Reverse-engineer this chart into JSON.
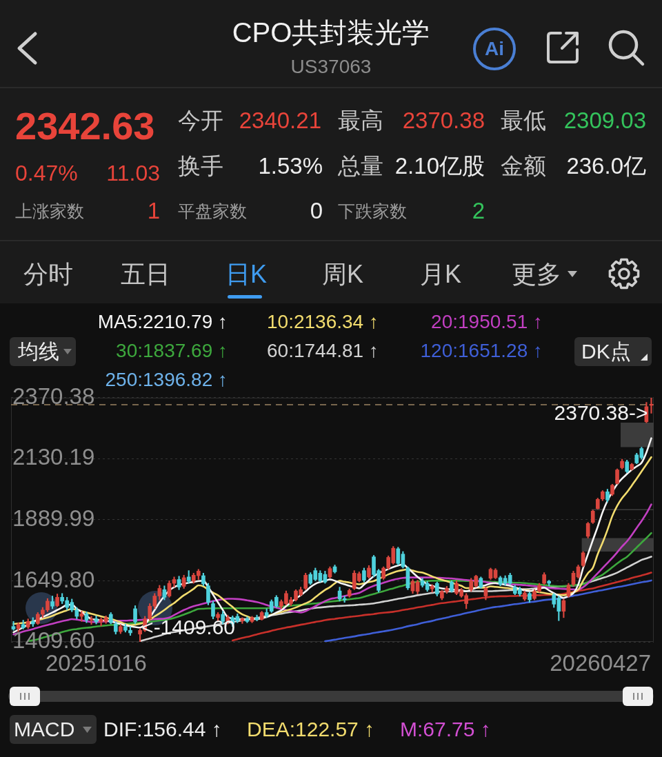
{
  "chart_data": {
    "type": "candlestick",
    "title": "CPO共封装光学",
    "subtitle": "US37063",
    "categories": [
      null,
      null,
      null,
      null,
      null,
      null,
      null,
      null,
      null,
      null,
      null,
      null,
      null,
      null,
      null,
      null,
      null,
      null,
      null,
      null,
      null,
      null,
      null,
      null,
      null,
      null,
      null,
      null,
      null,
      null,
      null,
      null,
      null,
      null,
      null,
      null,
      null,
      null,
      null,
      null,
      null,
      null,
      null,
      null,
      null,
      null,
      null,
      null,
      null,
      null,
      null,
      null,
      null,
      null,
      null,
      null,
      null,
      null,
      null,
      null,
      null,
      null,
      null,
      null,
      null,
      null,
      null,
      null,
      null,
      null,
      null,
      null,
      null,
      null,
      null,
      null,
      null,
      null,
      null,
      null,
      null,
      null,
      null,
      null,
      null,
      null,
      null,
      null,
      null,
      null,
      null,
      null,
      null,
      null,
      null,
      null,
      null,
      null,
      null,
      null,
      null,
      null,
      null,
      null,
      null,
      null,
      null,
      null,
      null,
      null,
      null,
      null,
      null,
      null,
      null,
      null,
      null,
      null,
      null,
      null,
      null,
      null,
      null,
      null,
      null,
      null,
      null,
      null,
      null,
      null,
      null,
      null
    ],
    "ohlc": [
      [
        1470,
        1490,
        1455,
        1460
      ],
      [
        1462,
        1485,
        1450,
        1478
      ],
      [
        1478,
        1495,
        1460,
        1465
      ],
      [
        1468,
        1500,
        1462,
        1490
      ],
      [
        1490,
        1505,
        1470,
        1480
      ],
      [
        1482,
        1525,
        1478,
        1518
      ],
      [
        1518,
        1545,
        1505,
        1535
      ],
      [
        1535,
        1580,
        1528,
        1570
      ],
      [
        1568,
        1590,
        1540,
        1550
      ],
      [
        1552,
        1598,
        1548,
        1585
      ],
      [
        1585,
        1600,
        1560,
        1570
      ],
      [
        1572,
        1585,
        1535,
        1545
      ],
      [
        1565,
        1578,
        1528,
        1535
      ],
      [
        1535,
        1545,
        1500,
        1510
      ],
      [
        1510,
        1530,
        1490,
        1520
      ],
      [
        1520,
        1528,
        1485,
        1495
      ],
      [
        1495,
        1510,
        1478,
        1500
      ],
      [
        1500,
        1512,
        1480,
        1488
      ],
      [
        1488,
        1505,
        1472,
        1498
      ],
      [
        1490,
        1512,
        1482,
        1505
      ],
      [
        1518,
        1525,
        1480,
        1485
      ],
      [
        1480,
        1488,
        1440,
        1450
      ],
      [
        1450,
        1478,
        1442,
        1470
      ],
      [
        1470,
        1480,
        1448,
        1455
      ],
      [
        1455,
        1470,
        1435,
        1445
      ],
      [
        1540,
        1552,
        1480,
        1488
      ],
      [
        1440,
        1462,
        1409.6,
        1455
      ],
      [
        1455,
        1510,
        1450,
        1500
      ],
      [
        1500,
        1560,
        1495,
        1550
      ],
      [
        1550,
        1600,
        1540,
        1590
      ],
      [
        1590,
        1632,
        1575,
        1620
      ],
      [
        1615,
        1630,
        1575,
        1585
      ],
      [
        1590,
        1650,
        1585,
        1640
      ],
      [
        1640,
        1665,
        1625,
        1655
      ],
      [
        1655,
        1668,
        1615,
        1625
      ],
      [
        1628,
        1672,
        1620,
        1662
      ],
      [
        1665,
        1690,
        1640,
        1648
      ],
      [
        1648,
        1680,
        1640,
        1672
      ],
      [
        1670,
        1695,
        1655,
        1688
      ],
      [
        1670,
        1680,
        1630,
        1638
      ],
      [
        1630,
        1640,
        1555,
        1565
      ],
      [
        1560,
        1570,
        1500,
        1510
      ],
      [
        1505,
        1525,
        1490,
        1518
      ],
      [
        1518,
        1530,
        1480,
        1490
      ],
      [
        1490,
        1515,
        1480,
        1505
      ],
      [
        1505,
        1512,
        1470,
        1480
      ],
      [
        1510,
        1520,
        1485,
        1492
      ],
      [
        1492,
        1505,
        1482,
        1500
      ],
      [
        1500,
        1508,
        1485,
        1490
      ],
      [
        1490,
        1510,
        1485,
        1505
      ],
      [
        1505,
        1515,
        1492,
        1498
      ],
      [
        1498,
        1530,
        1495,
        1525
      ],
      [
        1525,
        1540,
        1505,
        1512
      ],
      [
        1568,
        1575,
        1525,
        1530
      ],
      [
        1585,
        1592,
        1545,
        1550
      ],
      [
        1550,
        1575,
        1540,
        1568
      ],
      [
        1560,
        1610,
        1555,
        1600
      ],
      [
        1560,
        1585,
        1552,
        1575
      ],
      [
        1575,
        1615,
        1570,
        1610
      ],
      [
        1595,
        1625,
        1590,
        1615
      ],
      [
        1620,
        1680,
        1615,
        1672
      ],
      [
        1675,
        1682,
        1635,
        1640
      ],
      [
        1690,
        1700,
        1650,
        1655
      ],
      [
        1680,
        1690,
        1645,
        1650
      ],
      [
        1675,
        1688,
        1640,
        1645
      ],
      [
        1665,
        1705,
        1660,
        1698
      ],
      [
        1705,
        1712,
        1680,
        1685
      ],
      [
        1610,
        1625,
        1570,
        1578
      ],
      [
        1580,
        1590,
        1565,
        1575
      ],
      [
        1590,
        1618,
        1585,
        1612
      ],
      [
        1620,
        1690,
        1615,
        1680
      ],
      [
        1650,
        1685,
        1645,
        1678
      ],
      [
        1690,
        1700,
        1645,
        1652
      ],
      [
        1665,
        1710,
        1660,
        1700
      ],
      [
        1744,
        1750,
        1665,
        1674
      ],
      [
        1690,
        1695,
        1605,
        1612
      ],
      [
        1660,
        1705,
        1655,
        1700
      ],
      [
        1700,
        1748,
        1695,
        1742
      ],
      [
        1720,
        1785,
        1715,
        1778
      ],
      [
        1776,
        1782,
        1712,
        1718
      ],
      [
        1755,
        1765,
        1700,
        1705
      ],
      [
        1700,
        1705,
        1615,
        1622
      ],
      [
        1610,
        1655,
        1600,
        1648
      ],
      [
        1608,
        1652,
        1598,
        1645
      ],
      [
        1650,
        1660,
        1625,
        1632
      ],
      [
        1640,
        1648,
        1608,
        1615
      ],
      [
        1618,
        1635,
        1605,
        1628
      ],
      [
        1640,
        1645,
        1590,
        1598
      ],
      [
        1582,
        1612,
        1575,
        1608
      ],
      [
        1608,
        1628,
        1600,
        1620
      ],
      [
        1645,
        1650,
        1605,
        1610
      ],
      [
        1600,
        1650,
        1595,
        1640
      ],
      [
        1590,
        1620,
        1585,
        1612
      ],
      [
        1560,
        1600,
        1540,
        1592
      ],
      [
        1615,
        1660,
        1608,
        1650
      ],
      [
        1630,
        1672,
        1625,
        1668
      ],
      [
        1660,
        1665,
        1620,
        1625
      ],
      [
        1590,
        1625,
        1575,
        1620
      ],
      [
        1660,
        1700,
        1655,
        1695
      ],
      [
        1662,
        1698,
        1658,
        1692
      ],
      [
        1662,
        1668,
        1630,
        1636
      ],
      [
        1660,
        1670,
        1632,
        1640
      ],
      [
        1672,
        1680,
        1635,
        1640
      ],
      [
        1625,
        1632,
        1595,
        1600
      ],
      [
        1615,
        1625,
        1590,
        1598
      ],
      [
        1578,
        1610,
        1572,
        1602
      ],
      [
        1600,
        1605,
        1565,
        1575
      ],
      [
        1580,
        1615,
        1575,
        1608
      ],
      [
        1610,
        1640,
        1605,
        1632
      ],
      [
        1640,
        1682,
        1635,
        1674
      ],
      [
        1648,
        1652,
        1630,
        1640
      ],
      [
        1595,
        1600,
        1545,
        1558
      ],
      [
        1582,
        1590,
        1493,
        1530
      ],
      [
        1530,
        1578,
        1505,
        1572
      ],
      [
        1590,
        1640,
        1585,
        1632
      ],
      [
        1636,
        1688,
        1630,
        1680
      ],
      [
        1665,
        1712,
        1660,
        1705
      ],
      [
        1710,
        1765,
        1705,
        1760
      ],
      [
        1825,
        1880,
        1818,
        1875
      ],
      [
        1880,
        1928,
        1875,
        1924
      ],
      [
        1934,
        1975,
        1932,
        1970
      ],
      [
        1972,
        2005,
        1965,
        2000
      ],
      [
        2000,
        2010,
        1960,
        1968
      ],
      [
        1990,
        2030,
        1985,
        2026
      ],
      [
        2033,
        2090,
        2030,
        2086
      ],
      [
        2095,
        2128,
        2090,
        2120
      ],
      [
        2118,
        2125,
        2075,
        2080
      ],
      [
        2090,
        2112,
        2085,
        2108
      ],
      [
        2145,
        2152,
        2110,
        2114
      ],
      [
        2170,
        2176,
        2128,
        2135
      ],
      [
        2276,
        2352,
        2272,
        2335
      ],
      [
        2340.21,
        2370.38,
        2309.03,
        2342.63
      ]
    ],
    "colors": [
      "#4fd1dc",
      "#d9463e",
      "#4fd1dc",
      "#d9463e",
      "#4fd1dc",
      "#d9463e",
      "#d9463e",
      "#d9463e",
      "#4fd1dc",
      "#d9463e",
      "#4fd1dc",
      "#4fd1dc",
      "#4fd1dc",
      "#4fd1dc",
      "#d9463e",
      "#4fd1dc",
      "#d9463e",
      "#4fd1dc",
      "#d9463e",
      "#d9463e",
      "#4fd1dc",
      "#4fd1dc",
      "#d9463e",
      "#4fd1dc",
      "#4fd1dc",
      "#4fd1dc",
      "#d9463e",
      "#d9463e",
      "#d9463e",
      "#d9463e",
      "#d9463e",
      "#4fd1dc",
      "#d9463e",
      "#d9463e",
      "#4fd1dc",
      "#d9463e",
      "#4fd1dc",
      "#d9463e",
      "#d9463e",
      "#4fd1dc",
      "#4fd1dc",
      "#4fd1dc",
      "#d9463e",
      "#4fd1dc",
      "#d9463e",
      "#4fd1dc",
      "#4fd1dc",
      "#d9463e",
      "#4fd1dc",
      "#d9463e",
      "#4fd1dc",
      "#d9463e",
      "#4fd1dc",
      "#4fd1dc",
      "#4fd1dc",
      "#d9463e",
      "#d9463e",
      "#d9463e",
      "#d9463e",
      "#d9463e",
      "#d9463e",
      "#4fd1dc",
      "#4fd1dc",
      "#4fd1dc",
      "#4fd1dc",
      "#d9463e",
      "#4fd1dc",
      "#4fd1dc",
      "#4fd1dc",
      "#d9463e",
      "#d9463e",
      "#d9463e",
      "#4fd1dc",
      "#d9463e",
      "#4fd1dc",
      "#4fd1dc",
      "#d9463e",
      "#d9463e",
      "#d9463e",
      "#4fd1dc",
      "#4fd1dc",
      "#4fd1dc",
      "#d9463e",
      "#d9463e",
      "#4fd1dc",
      "#4fd1dc",
      "#d9463e",
      "#4fd1dc",
      "#d9463e",
      "#d9463e",
      "#4fd1dc",
      "#d9463e",
      "#d9463e",
      "#d9463e",
      "#d9463e",
      "#d9463e",
      "#4fd1dc",
      "#d9463e",
      "#d9463e",
      "#d9463e",
      "#4fd1dc",
      "#4fd1dc",
      "#4fd1dc",
      "#4fd1dc",
      "#4fd1dc",
      "#d9463e",
      "#4fd1dc",
      "#d9463e",
      "#d9463e",
      "#d9463e",
      "#4fd1dc",
      "#4fd1dc",
      "#4fd1dc",
      "#d9463e",
      "#d9463e",
      "#d9463e",
      "#d9463e",
      "#d9463e",
      "#d9463e",
      "#d9463e",
      "#d9463e",
      "#d9463e",
      "#4fd1dc",
      "#d9463e",
      "#d9463e",
      "#d9463e",
      "#4fd1dc",
      "#d9463e",
      "#4fd1dc",
      "#4fd1dc",
      "#d9463e",
      "#d9463e"
    ],
    "series": [
      {
        "name": "MA5:2210.79 ↑",
        "type": "line",
        "color": "#f5f5f5",
        "values": [
          1447,
          1457,
          1467,
          1478,
          1488,
          1497,
          1507,
          1516,
          1525,
          1535,
          1545,
          1555,
          1556,
          1540,
          1528,
          1512,
          1499,
          1497,
          1495,
          1493,
          1490,
          1485,
          1480,
          1474,
          1471,
          1468,
          1466,
          1478,
          1505,
          1535,
          1565,
          1590,
          1612,
          1625,
          1633,
          1638,
          1642,
          1646,
          1649,
          1650,
          1625,
          1595,
          1565,
          1535,
          1507,
          1502,
          1499,
          1499,
          1499,
          1499,
          1499,
          1503,
          1507,
          1515,
          1525,
          1534,
          1550,
          1565,
          1580,
          1593,
          1608,
          1625,
          1638,
          1645,
          1650,
          1655,
          1650,
          1642,
          1636,
          1630,
          1625,
          1620,
          1635,
          1652,
          1668,
          1680,
          1688,
          1696,
          1704,
          1710,
          1714,
          1700,
          1682,
          1665,
          1650,
          1636,
          1630,
          1624,
          1620,
          1618,
          1616,
          1614,
          1612,
          1609,
          1615,
          1622,
          1628,
          1633,
          1639,
          1641,
          1638,
          1634,
          1630,
          1624,
          1618,
          1612,
          1609,
          1614,
          1619,
          1623,
          1612,
          1601,
          1591,
          1582,
          1590,
          1601,
          1635,
          1700,
          1755,
          1810,
          1863,
          1920,
          1965,
          2000,
          2030,
          2052,
          2070,
          2087,
          2100,
          2114,
          2155,
          2210.79
        ]
      },
      {
        "name": "10:2136.34 ↑",
        "type": "line",
        "color": "#f2dc6e",
        "values": [
          1480,
          1482,
          1484,
          1486,
          1490,
          1495,
          1500,
          1505,
          1512,
          1520,
          1527,
          1534,
          1539,
          1536,
          1530,
          1525,
          1520,
          1515,
          1510,
          1505,
          1500,
          1494,
          1487,
          1480,
          1475,
          1477,
          1481,
          1485,
          1497,
          1510,
          1522,
          1535,
          1550,
          1562,
          1578,
          1593,
          1605,
          1618,
          1632,
          1628,
          1615,
          1603,
          1593,
          1578,
          1562,
          1547,
          1530,
          1518,
          1510,
          1503,
          1500,
          1502,
          1510,
          1517,
          1522,
          1527,
          1533,
          1538,
          1545,
          1553,
          1561,
          1570,
          1585,
          1600,
          1614,
          1625,
          1640,
          1650,
          1646,
          1643,
          1639,
          1636,
          1640,
          1645,
          1649,
          1657,
          1666,
          1675,
          1682,
          1688,
          1692,
          1695,
          1690,
          1685,
          1682,
          1675,
          1667,
          1660,
          1654,
          1648,
          1642,
          1636,
          1630,
          1621,
          1621,
          1622,
          1623,
          1623,
          1628,
          1626,
          1624,
          1622,
          1620,
          1618,
          1616,
          1614,
          1611,
          1608,
          1605,
          1602,
          1599,
          1597,
          1595,
          1593,
          1598,
          1604,
          1615,
          1650,
          1680,
          1701,
          1755,
          1800,
          1850,
          1905,
          1945,
          1975,
          1998,
          2025,
          2052,
          2080,
          2108,
          2136.34
        ]
      },
      {
        "name": "20:1950.51 ↑",
        "type": "line",
        "color": "#c23fc2",
        "values": [
          1439,
          1444,
          1450,
          1455,
          1460,
          1466,
          1471,
          1476,
          1481,
          1486,
          1491,
          1495,
          1499,
          1497,
          1494,
          1491,
          1488,
          1488,
          1489,
          1490,
          1491,
          1492,
          1493,
          1493,
          1494,
          1495,
          1496,
          1497,
          1498,
          1499,
          1500,
          1501,
          1505,
          1515,
          1525,
          1535,
          1543,
          1550,
          1555,
          1560,
          1565,
          1570,
          1574,
          1577,
          1579,
          1579,
          1578,
          1576,
          1573,
          1570,
          1566,
          1561,
          1555,
          1549,
          1544,
          1539,
          1535,
          1531,
          1528,
          1525,
          1530,
          1540,
          1550,
          1560,
          1570,
          1578,
          1582,
          1586,
          1590,
          1594,
          1598,
          1602,
          1612,
          1622,
          1630,
          1636,
          1642,
          1648,
          1654,
          1658,
          1661,
          1663,
          1663,
          1663,
          1663,
          1663,
          1663,
          1662,
          1661,
          1660,
          1659,
          1657,
          1655,
          1653,
          1651,
          1650,
          1648,
          1645,
          1642,
          1640,
          1638,
          1637,
          1636,
          1635,
          1634,
          1633,
          1631,
          1629,
          1627,
          1625,
          1622,
          1620,
          1619,
          1618,
          1617,
          1616,
          1615,
          1625,
          1640,
          1660,
          1680,
          1700,
          1720,
          1740,
          1762,
          1785,
          1805,
          1830,
          1858,
          1885,
          1915,
          1950.51
        ]
      },
      {
        "name": "30:1837.69 ↑",
        "type": "line",
        "color": "#3da83d",
        "values": [
          null,
          null,
          null,
          1412,
          1416,
          1420,
          1426,
          1431,
          1437,
          1442,
          1448,
          1453,
          1458,
          1460,
          1463,
          1465,
          1467,
          1470,
          1472,
          1474,
          1476,
          1477,
          1479,
          1480,
          1482,
          1483,
          1485,
          1487,
          1489,
          1491,
          1494,
          1496,
          1499,
          1504,
          1510,
          1517,
          1524,
          1532,
          1539,
          1540,
          1541,
          1541,
          1542,
          1542,
          1542,
          1542,
          1542,
          1542,
          1542,
          1542,
          1542,
          1542,
          1542,
          1544,
          1546,
          1548,
          1550,
          1552,
          1554,
          1555,
          1557,
          1559,
          1561,
          1563,
          1566,
          1568,
          1570,
          1572,
          1575,
          1577,
          1580,
          1582,
          1587,
          1593,
          1598,
          1604,
          1609,
          1615,
          1620,
          1626,
          1631,
          1637,
          1642,
          1647,
          1648,
          1649,
          1650,
          1650,
          1650,
          1650,
          1650,
          1650,
          1650,
          1649,
          1649,
          1648,
          1647,
          1647,
          1646,
          1645,
          1644,
          1644,
          1643,
          1642,
          1642,
          1641,
          1639,
          1637,
          1635,
          1633,
          1631,
          1630,
          1628,
          1629,
          1630,
          1632,
          1634,
          1636,
          1645,
          1655,
          1664,
          1674,
          1688,
          1703,
          1718,
          1732,
          1744,
          1762,
          1781,
          1800,
          1818,
          1837.69
        ]
      },
      {
        "name": "60:1744.81 ↑",
        "type": "line",
        "color": "#d2d2d2",
        "values": [
          null,
          null,
          null,
          null,
          null,
          null,
          null,
          null,
          null,
          null,
          null,
          null,
          null,
          null,
          null,
          null,
          null,
          null,
          null,
          null,
          null,
          null,
          null,
          null,
          null,
          null,
          1412,
          1418,
          1423,
          1429,
          1434,
          1440,
          1445,
          1448,
          1452,
          1455,
          1458,
          1461,
          1465,
          1468,
          1471,
          1474,
          1478,
          1481,
          1485,
          1488,
          1491,
          1494,
          1498,
          1501,
          1504,
          1507,
          1511,
          1514,
          1517,
          1520,
          1524,
          1527,
          1530,
          1533,
          1537,
          1540,
          1543,
          1545,
          1547,
          1549,
          1550,
          1551,
          1552,
          1553,
          1554,
          1556,
          1557,
          1559,
          1561,
          1564,
          1568,
          1571,
          1575,
          1579,
          1582,
          1586,
          1589,
          1593,
          1596,
          1599,
          1602,
          1606,
          1607,
          1608,
          1608,
          1609,
          1609,
          1609,
          1609,
          1609,
          1609,
          1609,
          1609,
          1610,
          1611,
          1612,
          1613,
          1614,
          1616,
          1617,
          1618,
          1620,
          1621,
          1623,
          1624,
          1626,
          1627,
          1628,
          1630,
          1631,
          1633,
          1638,
          1643,
          1649,
          1655,
          1661,
          1667,
          1674,
          1682,
          1692,
          1702,
          1712,
          1722,
          1732,
          1738,
          1744.81
        ]
      },
      {
        "name": "120:1651.28 ↑",
        "type": "line",
        "color": "#3f5fd8",
        "values": [
          null,
          null,
          null,
          null,
          null,
          null,
          null,
          null,
          null,
          null,
          null,
          null,
          null,
          null,
          null,
          null,
          null,
          null,
          null,
          null,
          null,
          null,
          null,
          null,
          null,
          null,
          null,
          null,
          null,
          null,
          null,
          null,
          null,
          null,
          null,
          null,
          null,
          null,
          null,
          null,
          null,
          null,
          null,
          null,
          null,
          null,
          null,
          null,
          null,
          null,
          null,
          null,
          null,
          null,
          null,
          null,
          null,
          null,
          null,
          null,
          null,
          null,
          null,
          null,
          1412,
          1415,
          1418,
          1422,
          1425,
          1428,
          1431,
          1435,
          1438,
          1441,
          1445,
          1448,
          1451,
          1454,
          1458,
          1462,
          1466,
          1471,
          1475,
          1479,
          1484,
          1488,
          1492,
          1497,
          1501,
          1505,
          1510,
          1514,
          1518,
          1523,
          1527,
          1531,
          1536,
          1540,
          1544,
          1547,
          1549,
          1552,
          1555,
          1558,
          1560,
          1563,
          1566,
          1568,
          1571,
          1574,
          1576,
          1578,
          1579,
          1583,
          1587,
          1591,
          1594,
          1598,
          1602,
          1606,
          1610,
          1613,
          1617,
          1621,
          1625,
          1628,
          1632,
          1636,
          1640,
          1644,
          1647,
          1651.28
        ]
      },
      {
        "name": "250:1396.82 ↑",
        "type": "line",
        "color": "#6eb2ea",
        "values": [
          null,
          null,
          null,
          null,
          null,
          null,
          null,
          null,
          null,
          null,
          null,
          null,
          null,
          null,
          null,
          null,
          null,
          null,
          null,
          null,
          null,
          null,
          null,
          null,
          null,
          null,
          null,
          null,
          null,
          null,
          null,
          null,
          null,
          null,
          null,
          null,
          null,
          null,
          null,
          null,
          null,
          null,
          null,
          null,
          null,
          null,
          null,
          null,
          null,
          null,
          null,
          null,
          null,
          null,
          null,
          null,
          null,
          null,
          null,
          null,
          null,
          null,
          null,
          null,
          null,
          null,
          null,
          null,
          null,
          null,
          null,
          null,
          null,
          null,
          null,
          null,
          null,
          null,
          null,
          null,
          null,
          null,
          null,
          null,
          null,
          null,
          null,
          null,
          null,
          null,
          null,
          null,
          null,
          null,
          null,
          null,
          null,
          null,
          null,
          null,
          null,
          null,
          null,
          null,
          null,
          null,
          null,
          null,
          null,
          null,
          null,
          null,
          null,
          null,
          null,
          null,
          null,
          null,
          null,
          null,
          null,
          null,
          null,
          null,
          null,
          null,
          null,
          null,
          null,
          null,
          null,
          null
        ]
      },
      {
        "type": "line",
        "color": "#c8302a",
        "values": [
          null,
          null,
          null,
          null,
          null,
          null,
          null,
          null,
          null,
          null,
          null,
          null,
          null,
          null,
          null,
          null,
          null,
          null,
          null,
          null,
          null,
          null,
          null,
          null,
          null,
          null,
          null,
          null,
          null,
          null,
          null,
          null,
          null,
          null,
          null,
          null,
          null,
          null,
          null,
          null,
          null,
          null,
          null,
          null,
          null,
          1415,
          1420,
          1425,
          1429,
          1434,
          1439,
          1444,
          1448,
          1453,
          1458,
          1462,
          1466,
          1469,
          1473,
          1477,
          1480,
          1484,
          1488,
          1491,
          1495,
          1498,
          1500,
          1503,
          1505,
          1508,
          1510,
          1512,
          1515,
          1517,
          1519,
          1522,
          1524,
          1526,
          1528,
          1531,
          1535,
          1538,
          1541,
          1545,
          1548,
          1552,
          1555,
          1559,
          1562,
          1564,
          1567,
          1569,
          1572,
          1574,
          1577,
          1579,
          1582,
          1584,
          1587,
          1588,
          1589,
          1589,
          1590,
          1590,
          1591,
          1591,
          1592,
          1593,
          1593,
          1594,
          1594,
          1595,
          1596,
          1599,
          1603,
          1606,
          1610,
          1613,
          1617,
          1620,
          1625,
          1630,
          1635,
          1640,
          1645,
          1650,
          1655,
          1661,
          1666,
          1671,
          1676,
          1682
        ]
      }
    ],
    "ylim": [
      1409.6,
      2370.38
    ],
    "yticks": [
      2370.38,
      2130.19,
      1889.99,
      {
        "value": 1649.8,
        "label": "1649.80"
      },
      {
        "value": 1409.6,
        "label": "1409.60"
      }
    ],
    "grid": "y",
    "legend": "top",
    "ref_lines": [
      {
        "axis": "y",
        "value": 2342.63,
        "color": "#9a8262",
        "line_style": "dashed"
      }
    ],
    "bands": [
      {
        "axis": "y",
        "from": 1765,
        "to": 1818,
        "color": "#3c3c3c"
      },
      {
        "axis": "y",
        "from": 1928,
        "to": 1932,
        "color": "#3c3c3c"
      },
      {
        "axis": "y",
        "from": 2176,
        "to": 2272,
        "color": "#3c3c3c"
      }
    ],
    "annotations": [
      "2342.63",
      "0.47%",
      "11.03",
      "今开",
      "2340.21",
      "最高",
      "2370.38",
      "最低",
      "2309.03",
      "换手",
      "1.53%",
      "总量",
      "2.10亿股",
      "金额",
      "236.0亿",
      "上涨家数",
      "1",
      "平盘家数",
      "0",
      "下跌家数",
      "2",
      "分时",
      "五日",
      "日K",
      "周K",
      "月K",
      "更多",
      "均线",
      "DK点",
      "MACD",
      "DIF:156.44 ↑",
      "DEA:122.57 ↑",
      "M:67.75 ↑",
      "Ai",
      "20251016",
      "20260427",
      "2370.38->",
      "<-1409.60"
    ]
  }
}
